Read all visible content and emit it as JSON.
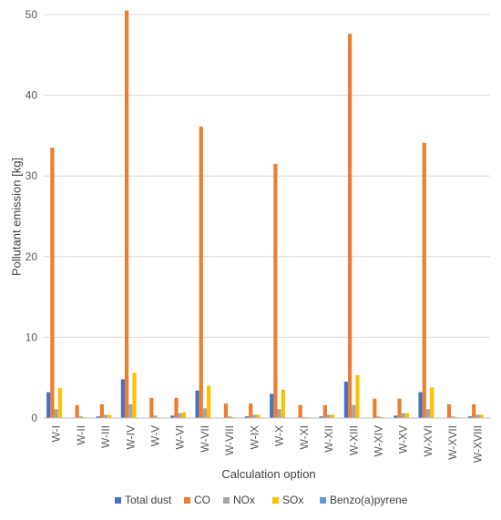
{
  "chart_data": {
    "type": "bar",
    "title": "",
    "xlabel": "Calculation option",
    "ylabel": "Pollutant emission [kg]",
    "ylim": [
      0,
      50
    ],
    "yticks": [
      0,
      10,
      20,
      30,
      40,
      50
    ],
    "grid": true,
    "legend_position": "bottom",
    "categories": [
      "W-I",
      "W-II",
      "W-III",
      "W-IV",
      "W-V",
      "W-VI",
      "W-VII",
      "W-VIII",
      "W-IX",
      "W-X",
      "W-XI",
      "W-XII",
      "W-XIII",
      "W-XIV",
      "W-XV",
      "W-XVI",
      "W-XVII",
      "W-XVIII"
    ],
    "series": [
      {
        "name": "Total dust",
        "color": "#4472C4",
        "values": [
          3.2,
          0.05,
          0.2,
          4.8,
          0.05,
          0.3,
          3.4,
          0.05,
          0.2,
          3.0,
          0.05,
          0.2,
          4.5,
          0.05,
          0.3,
          3.2,
          0.05,
          0.2
        ]
      },
      {
        "name": "CO",
        "color": "#ED7D31",
        "values": [
          33.5,
          1.6,
          1.7,
          50.5,
          2.5,
          2.5,
          36.1,
          1.8,
          1.8,
          31.5,
          1.6,
          1.6,
          47.6,
          2.4,
          2.4,
          34.1,
          1.7,
          1.7
        ]
      },
      {
        "name": "NOx",
        "color": "#A5A5A5",
        "values": [
          1.1,
          0.2,
          0.4,
          1.7,
          0.3,
          0.6,
          1.2,
          0.2,
          0.4,
          1.1,
          0.1,
          0.4,
          1.6,
          0.2,
          0.6,
          1.1,
          0.2,
          0.4
        ]
      },
      {
        "name": "SOx",
        "color": "#FFC000",
        "values": [
          3.7,
          0.1,
          0.4,
          5.6,
          0.1,
          0.7,
          4.0,
          0.1,
          0.4,
          3.5,
          0.1,
          0.4,
          5.3,
          0.1,
          0.6,
          3.8,
          0.1,
          0.4
        ]
      },
      {
        "name": "Benzo(a)pyrene",
        "color": "#5B9BD5",
        "values": [
          0.02,
          0.01,
          0.01,
          0.02,
          0.01,
          0.01,
          0.02,
          0.01,
          0.01,
          0.02,
          0.01,
          0.01,
          0.02,
          0.01,
          0.01,
          0.02,
          0.01,
          0.01
        ]
      }
    ]
  }
}
